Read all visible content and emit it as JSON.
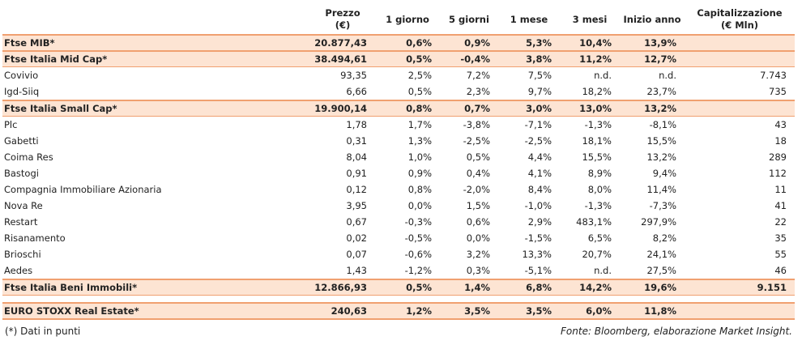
{
  "table": {
    "header": [
      null,
      [
        "Prezzo",
        "(€)"
      ],
      [
        "1 giorno"
      ],
      [
        "5 giorni"
      ],
      [
        "1 mese"
      ],
      [
        "3 mesi"
      ],
      [
        "Inizio anno"
      ],
      [
        "Capitalizzazione",
        "(€ Mln)"
      ]
    ],
    "rows": [
      [
        "Ftse MIB*",
        "20.877,43",
        "0,6%",
        "0,9%",
        "5,3%",
        "10,4%",
        "13,9%",
        null
      ],
      [
        "Ftse Italia Mid Cap*",
        "38.494,61",
        "0,5%",
        "-0,4%",
        "3,8%",
        "11,2%",
        "12,7%",
        null
      ],
      [
        "Covivio",
        "93,35",
        "2,5%",
        "7,2%",
        "7,5%",
        "n.d.",
        "n.d.",
        "7.743"
      ],
      [
        "Igd-Siiq",
        "6,66",
        "0,5%",
        "2,3%",
        "9,7%",
        "18,2%",
        "23,7%",
        "735"
      ],
      [
        "Ftse Italia Small Cap*",
        "19.900,14",
        "0,8%",
        "0,7%",
        "3,0%",
        "13,0%",
        "13,2%",
        null
      ],
      [
        "Plc",
        "1,78",
        "1,7%",
        "-3,8%",
        "-7,1%",
        "-1,3%",
        "-8,1%",
        "43"
      ],
      [
        "Gabetti",
        "0,31",
        "1,3%",
        "-2,5%",
        "-2,5%",
        "18,1%",
        "15,5%",
        "18"
      ],
      [
        "Coima Res",
        "8,04",
        "1,0%",
        "0,5%",
        "4,4%",
        "15,5%",
        "13,2%",
        "289"
      ],
      [
        "Bastogi",
        "0,91",
        "0,9%",
        "0,4%",
        "4,1%",
        "8,9%",
        "9,4%",
        "112"
      ],
      [
        "Compagnia Immobiliare Azionaria",
        "0,12",
        "0,8%",
        "-2,0%",
        "8,4%",
        "8,0%",
        "11,4%",
        "11"
      ],
      [
        "Nova Re",
        "3,95",
        "0,0%",
        "1,5%",
        "-1,0%",
        "-1,3%",
        "-7,3%",
        "41"
      ],
      [
        "Restart",
        "0,67",
        "-0,3%",
        "0,6%",
        "2,9%",
        "483,1%",
        "297,9%",
        "22"
      ],
      [
        "Risanamento",
        "0,02",
        "-0,5%",
        "0,0%",
        "-1,5%",
        "6,5%",
        "8,2%",
        "35"
      ],
      [
        "Brioschi",
        "0,07",
        "-0,6%",
        "3,2%",
        "13,3%",
        "20,7%",
        "24,1%",
        "55"
      ],
      [
        "Aedes",
        "1,43",
        "-1,2%",
        "0,3%",
        "-5,1%",
        "n.d.",
        "27,5%",
        "46"
      ],
      [
        "Ftse Italia Beni Immobili*",
        "12.866,93",
        "0,5%",
        "1,4%",
        "6,8%",
        "14,2%",
        "19,6%",
        "9.151"
      ],
      [
        "EURO STOXX Real Estate*",
        "240,63",
        "1,2%",
        "3,5%",
        "3,5%",
        "6,0%",
        "11,8%",
        null
      ]
    ]
  },
  "footer": {
    "note": "(*) Dati in punti",
    "source": "Fonte: Bloomberg, elaborazione Market Insight."
  }
}
